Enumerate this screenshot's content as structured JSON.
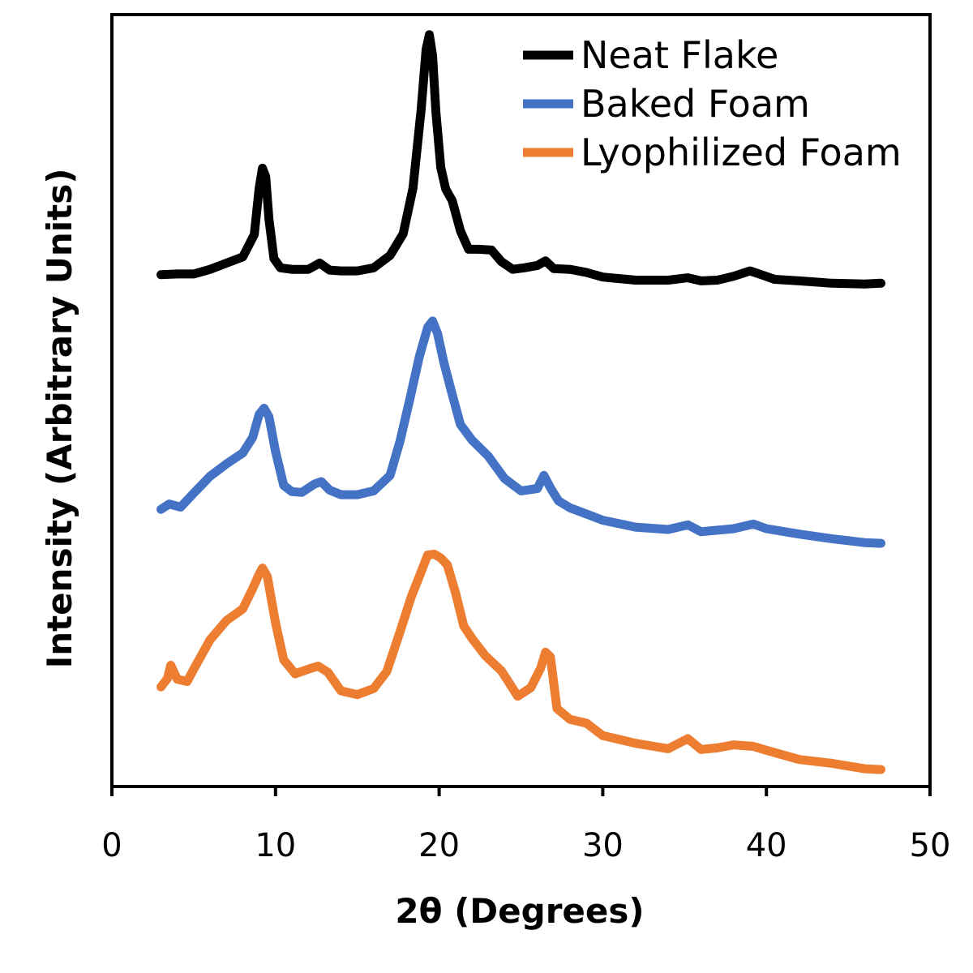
{
  "chart_data": {
    "type": "line",
    "title": "",
    "xlabel": "2θ (Degrees)",
    "ylabel": "Intensity (Arbitrary Units)",
    "xlim": [
      0,
      50
    ],
    "ylim": [
      0,
      100
    ],
    "xticks": [
      0,
      10,
      20,
      30,
      40,
      50
    ],
    "xtick_labels": [
      "0",
      "10",
      "20",
      "30",
      "40",
      "50"
    ],
    "y_tick_labels_shown": false,
    "grid": false,
    "legend_position": "top-right",
    "series": [
      {
        "name": "Neat Flake",
        "color": "#000000",
        "x": [
          3,
          4,
          5,
          6,
          7,
          8,
          8.7,
          9.0,
          9.2,
          9.4,
          9.6,
          9.9,
          10.3,
          11,
          12,
          12.7,
          13.3,
          14,
          15,
          16,
          17,
          17.8,
          18.4,
          18.9,
          19.2,
          19.4,
          19.6,
          19.8,
          20.1,
          20.4,
          20.8,
          21.3,
          21.8,
          22.4,
          23.2,
          23.8,
          24.5,
          25.2,
          26,
          26.5,
          27,
          28,
          29,
          30,
          32,
          34,
          35.2,
          36,
          37,
          38,
          39,
          39.7,
          40.5,
          42,
          44,
          46,
          47
        ],
        "y": [
          66.3,
          66.4,
          66.4,
          67.0,
          67.8,
          68.6,
          71.5,
          77.5,
          80.1,
          79.0,
          73.5,
          68.4,
          67.2,
          67.0,
          67.0,
          67.8,
          66.9,
          66.8,
          66.8,
          67.2,
          68.8,
          71.6,
          77.5,
          87.7,
          95.5,
          97.4,
          94.7,
          87.4,
          80.2,
          77.4,
          75.9,
          72.0,
          69.6,
          69.6,
          69.5,
          68.0,
          67.0,
          67.2,
          67.5,
          68.1,
          67.1,
          67.0,
          66.6,
          66.0,
          65.6,
          65.6,
          65.9,
          65.5,
          65.6,
          66.1,
          66.8,
          66.3,
          65.7,
          65.5,
          65.2,
          65.1,
          65.2
        ]
      },
      {
        "name": "Baked Foam",
        "color": "#4472C4",
        "x": [
          3,
          3.5,
          4.2,
          5,
          6,
          7,
          8,
          8.6,
          9,
          9.3,
          9.6,
          10,
          10.5,
          11,
          11.6,
          12.4,
          12.8,
          13.3,
          14,
          15,
          16,
          17,
          17.6,
          18.2,
          18.8,
          19.3,
          19.6,
          19.9,
          20.3,
          20.8,
          21.3,
          22,
          23,
          24,
          25,
          26,
          26.4,
          26.8,
          27.3,
          28,
          30,
          32,
          34,
          35.2,
          36,
          37,
          38,
          39.2,
          40,
          42,
          44,
          46,
          47
        ],
        "y": [
          35.9,
          36.6,
          36.2,
          38.0,
          40.2,
          41.8,
          43.2,
          45.2,
          48.2,
          49.0,
          47.9,
          43.4,
          39.0,
          38.2,
          38.1,
          39.2,
          39.5,
          38.4,
          37.8,
          37.8,
          38.3,
          40.3,
          44.7,
          50.1,
          55.8,
          59.5,
          60.3,
          58.7,
          54.8,
          50.8,
          46.9,
          44.9,
          42.8,
          39.9,
          38.3,
          38.6,
          40.3,
          38.7,
          37.0,
          36.1,
          34.5,
          33.6,
          33.3,
          33.9,
          33.0,
          33.2,
          33.4,
          34.0,
          33.4,
          32.7,
          32.1,
          31.6,
          31.5
        ]
      },
      {
        "name": "Lyophilized Foam",
        "color": "#ED7D31",
        "x": [
          3,
          3.4,
          3.6,
          4,
          4.6,
          5,
          6,
          7,
          8,
          8.6,
          9,
          9.2,
          9.5,
          10,
          10.5,
          11.2,
          12,
          12.6,
          13.2,
          14,
          15,
          16,
          16.8,
          17.6,
          18.3,
          18.9,
          19.3,
          19.7,
          20.1,
          20.5,
          21,
          21.5,
          22,
          22.8,
          23.8,
          24.8,
          25.6,
          26.2,
          26.5,
          26.8,
          27.2,
          28,
          29,
          30,
          32,
          34,
          35.2,
          36,
          37,
          38,
          39.2,
          40,
          42,
          44,
          46,
          47
        ],
        "y": [
          12.9,
          14.0,
          15.7,
          13.9,
          13.6,
          15.2,
          19.0,
          21.5,
          23.0,
          25.6,
          27.5,
          28.3,
          27.2,
          21.2,
          16.4,
          14.6,
          15.2,
          15.6,
          14.8,
          12.4,
          11.9,
          12.7,
          14.9,
          20.0,
          24.6,
          27.8,
          30.0,
          30.1,
          29.6,
          28.7,
          25.1,
          20.8,
          19.2,
          17.0,
          15.0,
          11.7,
          12.8,
          15.3,
          17.4,
          16.8,
          10.1,
          8.7,
          8.2,
          6.6,
          5.6,
          4.9,
          6.2,
          4.8,
          5.0,
          5.4,
          5.2,
          4.7,
          3.5,
          3.0,
          2.3,
          2.2
        ]
      }
    ]
  }
}
